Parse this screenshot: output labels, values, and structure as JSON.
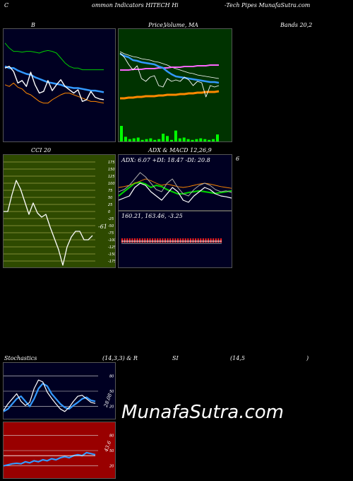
{
  "header": {
    "h1": "C",
    "h2": "ommon  Indicators HITECH Hi",
    "h3": "-Tech Pipes MunafaSutra.com"
  },
  "row1": {
    "a": "B",
    "b": "Price,",
    "c": "Volume, MA",
    "d": "Bands 20,2"
  },
  "row2": {
    "a": "CCI 20",
    "b": "ADX  & MACD 12,26,9",
    "c": "6"
  },
  "adx_label": "ADX: 6.07  +DI: 18.47 -DI: 20.8",
  "macd_label": "160.21,  163.46,  -3.25",
  "cci_value": "-61",
  "row3": {
    "a": "Stochastics",
    "b": "(14,3,3) & R",
    "c": "SI",
    "d": "(14,5",
    "e": ")"
  },
  "stoch_value": "28.08",
  "rsi_value": "43.6",
  "watermark": "MunafaSutra.com",
  "colors": {
    "dark_panel": "#000022",
    "green_panel": "#003300",
    "olive_panel": "#2e4a00",
    "red_panel": "#990000",
    "blue_line": "#3399ff",
    "orange_line": "#ff8800",
    "green_line": "#00cc00",
    "pink_line": "#ff66ff"
  },
  "chart_data": [
    {
      "id": "bollinger",
      "type": "line",
      "ylim": [
        0,
        100
      ],
      "series": [
        {
          "color": "#00cc00",
          "values": [
            90,
            84,
            80,
            80,
            79,
            80,
            80,
            79,
            78,
            80,
            81,
            80,
            78,
            72,
            66,
            62,
            60,
            60,
            58,
            58,
            58,
            58,
            58,
            58
          ]
        },
        {
          "color": "#3399ff",
          "values": [
            62,
            60,
            60,
            57,
            55,
            53,
            52,
            49,
            47,
            45,
            43,
            42,
            41,
            40,
            38,
            37,
            36,
            36,
            35,
            34,
            33,
            33,
            32,
            31
          ]
        },
        {
          "color": "#ff8800",
          "values": [
            40,
            38,
            42,
            37,
            35,
            30,
            28,
            24,
            20,
            18,
            18,
            22,
            25,
            28,
            30,
            30,
            28,
            26,
            24,
            22,
            20,
            20,
            19,
            18
          ]
        },
        {
          "color": "#ffffff",
          "values": [
            60,
            62,
            56,
            42,
            45,
            38,
            55,
            40,
            30,
            32,
            45,
            33,
            40,
            46,
            38,
            34,
            30,
            34,
            20,
            22,
            32,
            25,
            23,
            22
          ]
        }
      ]
    },
    {
      "id": "price-ma",
      "type": "line",
      "ylim": [
        0,
        100
      ],
      "series": [
        {
          "color": "#ffffff",
          "values": [
            78,
            75,
            73,
            71,
            70,
            68,
            67,
            66,
            64,
            63,
            61,
            59,
            56,
            54,
            52,
            50,
            48,
            47,
            45,
            44,
            43,
            42,
            41,
            40
          ]
        },
        {
          "color": "#ff66ff",
          "values": [
            52,
            52,
            52,
            53,
            53,
            53,
            54,
            54,
            54,
            55,
            55,
            55,
            56,
            56,
            56,
            57,
            57,
            57,
            58,
            58,
            58,
            59,
            59,
            59
          ]
        },
        {
          "color": "#3399ff",
          "values": [
            75,
            72,
            70,
            66,
            65,
            63,
            62,
            61,
            60,
            57,
            55,
            50,
            46,
            43,
            42,
            41,
            40,
            39,
            38,
            37,
            36,
            35,
            35,
            34
          ]
        },
        {
          "color": "#ff8800",
          "values": [
            12,
            12,
            13,
            13,
            14,
            14,
            15,
            15,
            15,
            16,
            16,
            17,
            17,
            17,
            18,
            18,
            19,
            19,
            20,
            20,
            21,
            21,
            21,
            22
          ]
        },
        {
          "color": "#ffffff",
          "values": [
            76,
            70,
            60,
            52,
            58,
            40,
            36,
            42,
            44,
            30,
            28,
            40,
            36,
            38,
            36,
            42,
            38,
            30,
            36,
            34,
            14,
            30,
            28,
            30
          ]
        }
      ]
    },
    {
      "id": "volume",
      "type": "bar",
      "ylim": [
        0,
        100
      ],
      "values": [
        100,
        30,
        15,
        20,
        25,
        10,
        15,
        20,
        10,
        15,
        50,
        35,
        10,
        70,
        20,
        25,
        15,
        10,
        15,
        20,
        15,
        10,
        15,
        45
      ]
    },
    {
      "id": "cci",
      "type": "line",
      "ylim": [
        -175,
        175
      ],
      "yticks": [
        175,
        150,
        125,
        100,
        75,
        50,
        25,
        0,
        -25,
        -50,
        -75,
        -100,
        -125,
        -150,
        -175
      ],
      "series": [
        {
          "color": "#ffffff",
          "values": [
            0,
            0,
            60,
            110,
            80,
            35,
            -10,
            30,
            -5,
            -20,
            -10,
            -55,
            -95,
            -135,
            -190,
            -125,
            -90,
            -70,
            -70,
            -100,
            -100,
            -85
          ]
        }
      ]
    },
    {
      "id": "adx",
      "type": "line",
      "ylim": [
        0,
        100
      ],
      "series": [
        {
          "color": "#00cc00",
          "values": [
            30,
            40,
            50,
            60,
            62,
            58,
            50,
            55,
            52,
            45,
            40,
            35,
            35,
            38,
            40,
            42,
            40,
            38,
            36,
            38,
            40,
            42
          ]
        },
        {
          "color": "#ff8800",
          "values": [
            50,
            52,
            55,
            60,
            65,
            70,
            66,
            60,
            55,
            58,
            55,
            52,
            50,
            52,
            55,
            58,
            60,
            58,
            55,
            52,
            50,
            48
          ]
        },
        {
          "color": "#aaaaaa",
          "values": [
            40,
            45,
            55,
            70,
            85,
            75,
            60,
            45,
            40,
            60,
            70,
            50,
            35,
            30,
            45,
            55,
            60,
            55,
            45,
            40,
            42,
            38
          ]
        },
        {
          "color": "#ffffff",
          "values": [
            20,
            25,
            30,
            50,
            60,
            55,
            40,
            30,
            20,
            35,
            50,
            40,
            20,
            15,
            30,
            40,
            50,
            45,
            35,
            30,
            28,
            25
          ]
        }
      ]
    },
    {
      "id": "macd",
      "type": "bar",
      "ylim": [
        -20,
        20
      ],
      "values": [
        6,
        6,
        6,
        6,
        6,
        6,
        6,
        6,
        6,
        6,
        6,
        6,
        6,
        6,
        6,
        6,
        6,
        6,
        6,
        6,
        6,
        6,
        6,
        6,
        6,
        6,
        6,
        6,
        6,
        6,
        6,
        6,
        6,
        6,
        6,
        6,
        6,
        6,
        6,
        6
      ]
    },
    {
      "id": "stochastics",
      "type": "line",
      "ylim": [
        0,
        100
      ],
      "yticks": [
        80,
        50,
        20
      ],
      "series": [
        {
          "color": "#3399ff",
          "values": [
            10,
            15,
            25,
            35,
            40,
            30,
            20,
            35,
            55,
            65,
            60,
            45,
            35,
            25,
            18,
            15,
            22,
            28,
            35,
            38,
            32,
            30
          ]
        },
        {
          "color": "#ffffff",
          "values": [
            12,
            25,
            35,
            45,
            30,
            22,
            28,
            55,
            72,
            68,
            48,
            36,
            25,
            15,
            10,
            18,
            30,
            40,
            42,
            35,
            28,
            26
          ]
        }
      ]
    },
    {
      "id": "rsi",
      "type": "line",
      "ylim": [
        0,
        100
      ],
      "yticks": [
        80,
        50,
        20
      ],
      "series": [
        {
          "color": "#3399ff",
          "values": [
            20,
            22,
            24,
            25,
            24,
            28,
            26,
            30,
            28,
            32,
            30,
            34,
            32,
            36,
            38,
            36,
            40,
            42,
            40,
            46,
            44,
            42
          ]
        },
        {
          "color": "#ffffff",
          "values": [
            40,
            40,
            40,
            40,
            40,
            40,
            40,
            40,
            40,
            40,
            40,
            40,
            40,
            40,
            40,
            40,
            40,
            40,
            40,
            40,
            40,
            40
          ]
        }
      ]
    }
  ]
}
